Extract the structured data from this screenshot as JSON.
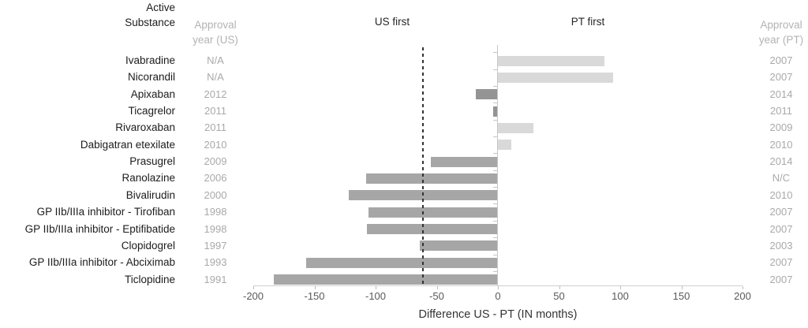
{
  "titles": {
    "active_substance_line1": "Active",
    "active_substance_line2": "Substance",
    "us_year_line1": "Approval",
    "us_year_line2": "year (US)",
    "pt_year_line1": "Approval",
    "pt_year_line2": "year (PT)",
    "us_first": "US first",
    "pt_first": "PT first",
    "x_axis_title": "Difference US - PT (IN months)"
  },
  "colors": {
    "bar_pt_first": "#d9d9d9",
    "bar_us_first": "#a6a6a6",
    "bar_us_first_small": "#949494",
    "zero_axis": "#c6c6c6",
    "x_axis": "#cfcfcf",
    "dashed_reference": "#333333",
    "label_text": "#1c1c1c",
    "year_text": "#a9a9a9",
    "tick_text": "#595959"
  },
  "chart_data": {
    "type": "bar",
    "orientation": "horizontal",
    "title": "",
    "xlabel": "Difference US - PT (IN months)",
    "x_ticks": [
      -200,
      -150,
      -100,
      -50,
      0,
      50,
      100,
      150,
      200
    ],
    "xlim": [
      -200,
      200
    ],
    "grid": false,
    "annotations": {
      "left_region": "US first",
      "right_region": "PT first"
    },
    "reference_line": {
      "style": "dashed",
      "value_months": -61
    },
    "columns": [
      "Active Substance",
      "Approval year (US)",
      "Difference US - PT (IN months)",
      "Approval year (PT)"
    ],
    "rows": [
      {
        "substance": "Ivabradine",
        "us_year": "N/A",
        "pt_year": "2007",
        "value": 87,
        "color": "#d9d9d9"
      },
      {
        "substance": "Nicorandil",
        "us_year": "N/A",
        "pt_year": "2007",
        "value": 94,
        "color": "#d9d9d9"
      },
      {
        "substance": "Apixaban",
        "us_year": "2012",
        "pt_year": "2014",
        "value": -18,
        "color": "#949494"
      },
      {
        "substance": "Ticagrelor",
        "us_year": "2011",
        "pt_year": "2011",
        "value": -4,
        "color": "#949494"
      },
      {
        "substance": "Rivaroxaban",
        "us_year": "2011",
        "pt_year": "2009",
        "value": 29,
        "color": "#d9d9d9"
      },
      {
        "substance": "Dabigatran etexilate",
        "us_year": "2010",
        "pt_year": "2010",
        "value": 11,
        "color": "#d9d9d9"
      },
      {
        "substance": "Prasugrel",
        "us_year": "2009",
        "pt_year": "2014",
        "value": -55,
        "color": "#a6a6a6"
      },
      {
        "substance": "Ranolazine",
        "us_year": "2006",
        "pt_year": "N/C",
        "value": -108,
        "color": "#a6a6a6"
      },
      {
        "substance": "Bivalirudin",
        "us_year": "2000",
        "pt_year": "2010",
        "value": -122,
        "color": "#a6a6a6"
      },
      {
        "substance": "GP IIb/IIIa inhibitor - Tirofiban",
        "us_year": "1998",
        "pt_year": "2007",
        "value": -106,
        "color": "#a6a6a6"
      },
      {
        "substance": "GP IIb/IIIa inhibitor - Eptifibatide",
        "us_year": "1998",
        "pt_year": "2007",
        "value": -107,
        "color": "#a6a6a6"
      },
      {
        "substance": "Clopidogrel",
        "us_year": "1997",
        "pt_year": "2003",
        "value": -64,
        "color": "#a6a6a6"
      },
      {
        "substance": "GP IIb/IIIa inhibitor - Abciximab",
        "us_year": "1993",
        "pt_year": "2007",
        "value": -157,
        "color": "#a6a6a6"
      },
      {
        "substance": "Ticlopidine",
        "us_year": "1991",
        "pt_year": "2007",
        "value": -183,
        "color": "#a6a6a6"
      }
    ]
  }
}
